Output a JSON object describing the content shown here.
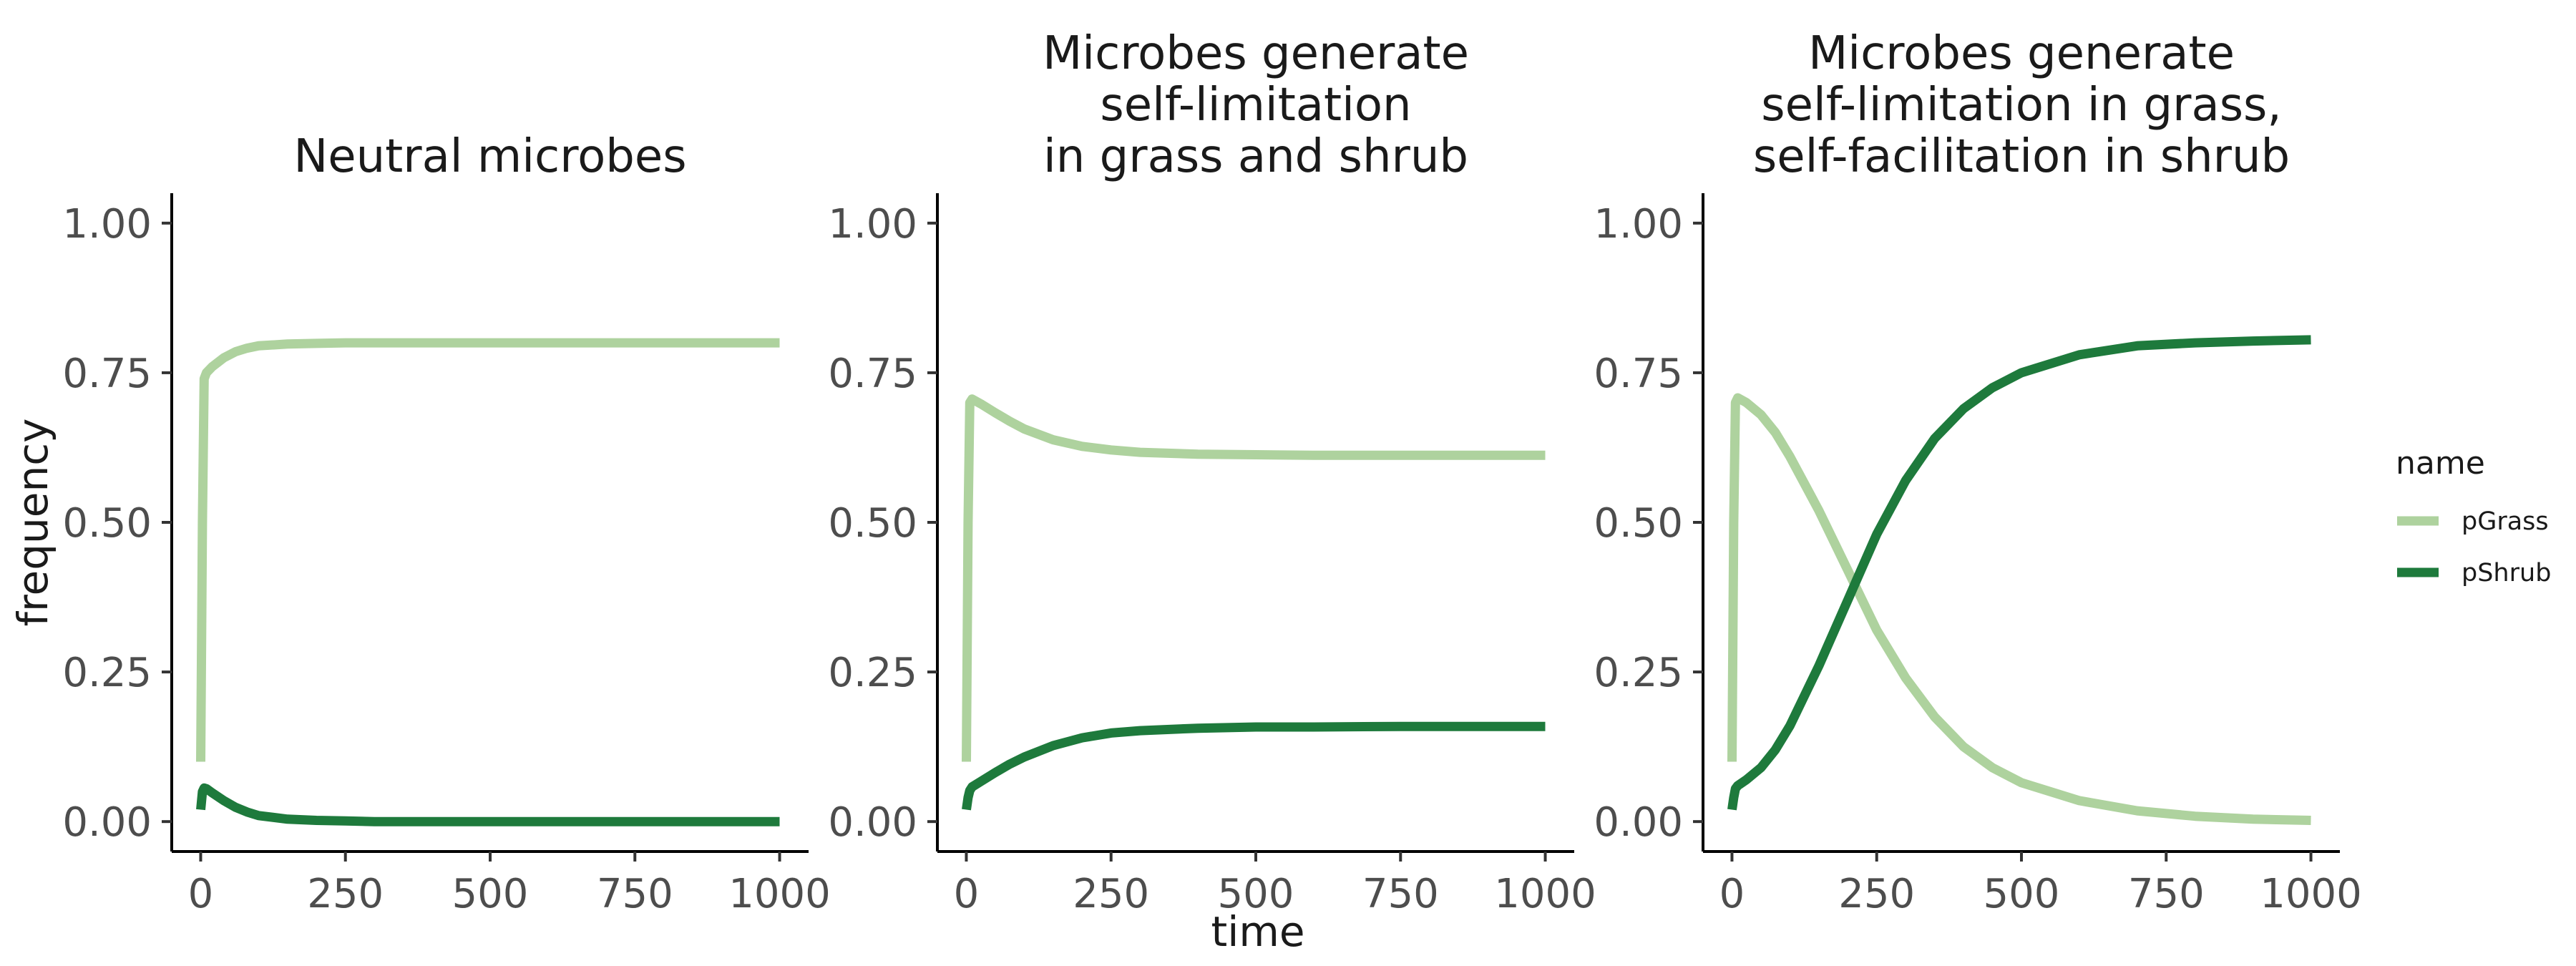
{
  "colors": {
    "pGrass": "#aed29e",
    "pShrub": "#1e7a3c",
    "axis": "#000000",
    "tick_text": "#4d4d4d"
  },
  "labels": {
    "xlabel": "time",
    "ylabel": "frequency"
  },
  "legend": {
    "title": "name",
    "placement": "right",
    "entries": [
      "pGrass",
      "pShrub"
    ]
  },
  "chart_data": [
    {
      "type": "line",
      "title_lines": [
        "Neutral microbes"
      ],
      "xlim": [
        -50,
        1050
      ],
      "ylim": [
        -0.05,
        1.05
      ],
      "x_ticks": [
        0,
        250,
        500,
        750,
        1000
      ],
      "x_tick_labels": [
        "0",
        "250",
        "500",
        "750",
        "1000"
      ],
      "y_ticks": [
        0,
        0.25,
        0.5,
        0.75,
        1.0
      ],
      "y_tick_labels": [
        "0.00",
        "0.25",
        "0.50",
        "0.75",
        "1.00"
      ],
      "series": [
        {
          "name": "pGrass",
          "x": [
            0,
            3,
            6,
            10,
            20,
            40,
            60,
            80,
            100,
            150,
            200,
            250,
            300,
            500,
            750,
            1000
          ],
          "y": [
            0.1,
            0.5,
            0.74,
            0.75,
            0.76,
            0.775,
            0.785,
            0.791,
            0.795,
            0.798,
            0.799,
            0.8,
            0.8,
            0.8,
            0.8,
            0.8
          ]
        },
        {
          "name": "pShrub",
          "x": [
            0,
            3,
            6,
            10,
            20,
            40,
            60,
            80,
            100,
            150,
            200,
            250,
            300,
            500,
            750,
            1000
          ],
          "y": [
            0.02,
            0.05,
            0.056,
            0.055,
            0.048,
            0.035,
            0.024,
            0.016,
            0.01,
            0.004,
            0.002,
            0.001,
            0.0,
            0.0,
            0.0,
            0.0
          ]
        }
      ]
    },
    {
      "type": "line",
      "title_lines": [
        "Microbes generate",
        "self-limitation",
        "in grass and shrub"
      ],
      "xlim": [
        -50,
        1050
      ],
      "ylim": [
        -0.05,
        1.05
      ],
      "x_ticks": [
        0,
        250,
        500,
        750,
        1000
      ],
      "x_tick_labels": [
        "0",
        "250",
        "500",
        "750",
        "1000"
      ],
      "y_ticks": [
        0,
        0.25,
        0.5,
        0.75,
        1.0
      ],
      "y_tick_labels": [
        "0.00",
        "0.25",
        "0.50",
        "0.75",
        "1.00"
      ],
      "series": [
        {
          "name": "pGrass",
          "x": [
            0,
            3,
            6,
            10,
            25,
            50,
            75,
            100,
            150,
            200,
            250,
            300,
            400,
            500,
            600,
            750,
            1000
          ],
          "y": [
            0.1,
            0.5,
            0.7,
            0.706,
            0.698,
            0.683,
            0.669,
            0.656,
            0.638,
            0.627,
            0.621,
            0.617,
            0.614,
            0.613,
            0.612,
            0.612,
            0.612
          ]
        },
        {
          "name": "pShrub",
          "x": [
            0,
            3,
            6,
            10,
            25,
            50,
            75,
            100,
            150,
            200,
            250,
            300,
            400,
            500,
            600,
            750,
            1000
          ],
          "y": [
            0.02,
            0.04,
            0.052,
            0.058,
            0.067,
            0.082,
            0.096,
            0.108,
            0.127,
            0.14,
            0.148,
            0.152,
            0.156,
            0.158,
            0.158,
            0.159,
            0.159
          ]
        }
      ]
    },
    {
      "type": "line",
      "title_lines": [
        "Microbes generate",
        "self-limitation in grass,",
        "self-facilitation in shrub"
      ],
      "xlim": [
        -50,
        1050
      ],
      "ylim": [
        -0.05,
        1.05
      ],
      "x_ticks": [
        0,
        250,
        500,
        750,
        1000
      ],
      "x_tick_labels": [
        "0",
        "250",
        "500",
        "750",
        "1000"
      ],
      "y_ticks": [
        0,
        0.25,
        0.5,
        0.75,
        1.0
      ],
      "y_tick_labels": [
        "0.00",
        "0.25",
        "0.50",
        "0.75",
        "1.00"
      ],
      "series": [
        {
          "name": "pGrass",
          "x": [
            0,
            3,
            6,
            10,
            25,
            50,
            75,
            100,
            150,
            200,
            250,
            300,
            350,
            400,
            450,
            500,
            600,
            700,
            800,
            900,
            1000
          ],
          "y": [
            0.1,
            0.5,
            0.7,
            0.708,
            0.7,
            0.68,
            0.65,
            0.61,
            0.52,
            0.42,
            0.32,
            0.24,
            0.175,
            0.125,
            0.09,
            0.065,
            0.035,
            0.018,
            0.009,
            0.004,
            0.002
          ]
        },
        {
          "name": "pShrub",
          "x": [
            0,
            3,
            6,
            10,
            25,
            50,
            75,
            100,
            150,
            200,
            250,
            300,
            350,
            400,
            450,
            500,
            600,
            700,
            800,
            900,
            1000
          ],
          "y": [
            0.02,
            0.04,
            0.055,
            0.06,
            0.07,
            0.09,
            0.12,
            0.16,
            0.26,
            0.37,
            0.48,
            0.57,
            0.64,
            0.69,
            0.725,
            0.75,
            0.78,
            0.795,
            0.8,
            0.803,
            0.805
          ]
        }
      ]
    }
  ]
}
